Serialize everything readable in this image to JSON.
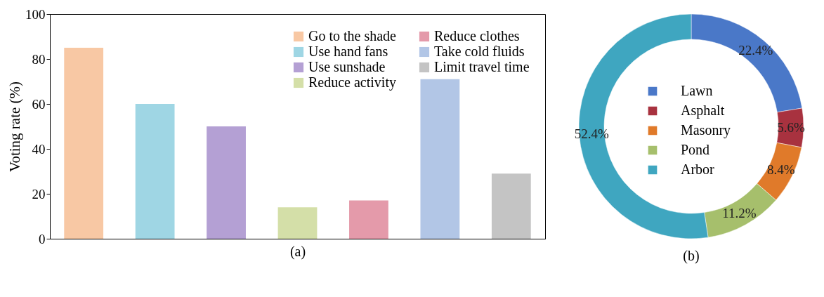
{
  "chart_data": [
    {
      "type": "bar",
      "xlabel": "(a)",
      "ylabel": "Voting rate (%)",
      "categories": [
        null,
        null,
        null,
        null,
        null,
        null,
        null
      ],
      "series": [
        {
          "name": "Go to the shade",
          "color": "#f8c8a4",
          "values": [
            85,
            null,
            null,
            null,
            null,
            null,
            null
          ]
        },
        {
          "name": "Use hand fans",
          "color": "#9fd6e4",
          "values": [
            null,
            60,
            null,
            null,
            null,
            null,
            null
          ]
        },
        {
          "name": "Use sunshade",
          "color": "#b4a0d4",
          "values": [
            null,
            null,
            50,
            null,
            null,
            null,
            null
          ]
        },
        {
          "name": "Reduce activity",
          "color": "#d4dfa8",
          "values": [
            null,
            null,
            null,
            14,
            null,
            null,
            null
          ]
        },
        {
          "name": "Reduce clothes",
          "color": "#e49aaa",
          "values": [
            null,
            null,
            null,
            null,
            17,
            null,
            null
          ]
        },
        {
          "name": "Take cold fluids",
          "color": "#b2c6e6",
          "values": [
            null,
            null,
            null,
            null,
            null,
            71,
            null
          ]
        },
        {
          "name": "Limit travel time",
          "color": "#c4c4c4",
          "values": [
            null,
            null,
            null,
            null,
            null,
            null,
            29
          ]
        }
      ],
      "ylim": [
        0,
        100
      ],
      "yticks": [
        0,
        20,
        40,
        60,
        80,
        100
      ],
      "tick_labels": "y",
      "legend": "top right"
    },
    {
      "type": "donut",
      "categories": [
        "Lawn",
        "Asphalt",
        "Masonry",
        "Pond",
        "Arbor"
      ],
      "values": [
        22.4,
        5.6,
        8.4,
        11.2,
        52.4
      ],
      "colors": [
        "#4a78c8",
        "#a8323f",
        "#e07a2a",
        "#a6bf6c",
        "#3fa6c0"
      ],
      "value_labels": [
        "22.4%",
        "5.6%",
        "8.4%",
        "11.2%",
        "52.4%"
      ],
      "legend": "center",
      "annotations": [
        "(b)"
      ]
    }
  ]
}
